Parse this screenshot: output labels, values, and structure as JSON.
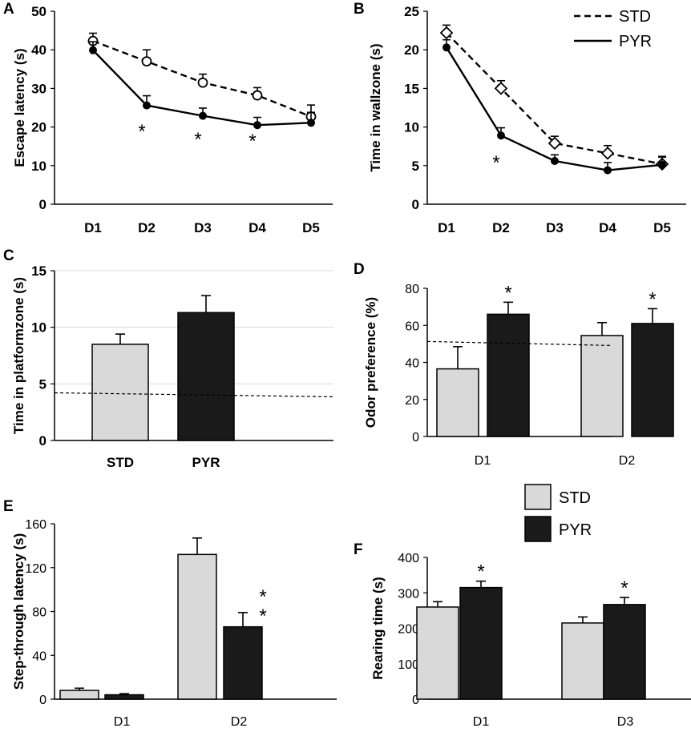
{
  "chart_data": [
    {
      "panel": "A",
      "type": "line",
      "ylabel": "Escape latency (s)",
      "categories": [
        "D1",
        "D2",
        "D3",
        "D4",
        "D5"
      ],
      "ylim": [
        0,
        50
      ],
      "yticks": [
        0,
        10,
        20,
        30,
        40,
        50
      ],
      "series": [
        {
          "name": "STD",
          "style": "dashed",
          "marker": "open-circle",
          "values": [
            42.3,
            37.0,
            31.5,
            28.2,
            22.7
          ],
          "errors": [
            2.0,
            3.0,
            2.2,
            2.0,
            3.0
          ]
        },
        {
          "name": "PYR",
          "style": "solid",
          "marker": "filled-circle",
          "values": [
            39.9,
            25.6,
            22.9,
            20.5,
            21.1
          ],
          "errors": [
            2.2,
            2.5,
            2.0,
            2.0,
            2.7
          ]
        }
      ],
      "annotations": [
        "*",
        "*",
        "*"
      ],
      "annotation_categories": [
        "D2",
        "D3",
        "D4"
      ]
    },
    {
      "panel": "B",
      "type": "line",
      "ylabel": "Time in wallzone (s)",
      "categories": [
        "D1",
        "D2",
        "D3",
        "D4",
        "D5"
      ],
      "ylim": [
        0,
        25
      ],
      "yticks": [
        0,
        5,
        10,
        15,
        20,
        25
      ],
      "legend": [
        "STD",
        "PYR"
      ],
      "series": [
        {
          "name": "STD",
          "style": "dashed",
          "marker": "open-diamond",
          "values": [
            22.2,
            15.0,
            7.9,
            6.6,
            5.2
          ],
          "errors": [
            1.0,
            1.0,
            0.9,
            1.0,
            1.0
          ]
        },
        {
          "name": "PYR",
          "style": "solid",
          "marker": "filled-circle",
          "values": [
            20.3,
            8.9,
            5.6,
            4.4,
            5.1
          ],
          "errors": [
            1.0,
            1.0,
            0.8,
            1.0,
            1.0
          ]
        }
      ],
      "annotations": [
        "*"
      ],
      "annotation_categories": [
        "D2"
      ]
    },
    {
      "panel": "C",
      "type": "bar",
      "ylabel": "Time in platformzone (s)",
      "categories": [
        "STD",
        "PYR"
      ],
      "ylim": [
        0,
        15
      ],
      "yticks": [
        0,
        5,
        10,
        15
      ],
      "values": [
        8.5,
        11.3
      ],
      "errors": [
        0.9,
        1.5
      ],
      "chance_line": 4.0,
      "gridlines": true
    },
    {
      "panel": "D",
      "type": "bar",
      "ylabel": "Odor preference (%)",
      "categories": [
        "D1",
        "D2"
      ],
      "ylim": [
        0,
        80
      ],
      "yticks": [
        0,
        20,
        40,
        60,
        80
      ],
      "series": [
        {
          "name": "STD",
          "values": [
            36.5,
            54.5
          ],
          "errors": [
            12.0,
            7.0
          ]
        },
        {
          "name": "PYR",
          "values": [
            66.0,
            61.0
          ],
          "errors": [
            6.5,
            8.0
          ]
        }
      ],
      "chance_line": 50.0,
      "annotations": [
        "*",
        "*"
      ],
      "annotation_categories": [
        "D1",
        "D2"
      ]
    },
    {
      "panel": "E",
      "type": "bar",
      "ylabel": "Step-through latency (s)",
      "categories": [
        "D1",
        "D2"
      ],
      "ylim": [
        0,
        160
      ],
      "yticks": [
        0,
        40,
        80,
        120,
        160
      ],
      "series": [
        {
          "name": "STD",
          "values": [
            8.0,
            132.0
          ],
          "errors": [
            2.0,
            15.0
          ]
        },
        {
          "name": "PYR",
          "values": [
            4.0,
            66.0
          ],
          "errors": [
            1.0,
            13.0
          ]
        }
      ],
      "annotations": [
        "**"
      ],
      "annotation_categories": [
        "D2"
      ]
    },
    {
      "panel": "F",
      "type": "bar",
      "ylabel": "Rearing time (s)",
      "categories": [
        "D1",
        "D3"
      ],
      "ylim": [
        0,
        400
      ],
      "yticks": [
        0,
        100,
        200,
        300,
        400
      ],
      "series": [
        {
          "name": "STD",
          "values": [
            260,
            215
          ],
          "errors": [
            15,
            17
          ]
        },
        {
          "name": "PYR",
          "values": [
            315,
            267
          ],
          "errors": [
            18,
            20
          ]
        }
      ],
      "annotations": [
        "*",
        "*"
      ],
      "annotation_categories": [
        "D1",
        "D3"
      ]
    }
  ],
  "bar_legend": {
    "items": [
      "STD",
      "PYR"
    ]
  },
  "colors": {
    "std_fill": "#d9d9d9",
    "pyr_fill": "#1a1a1a",
    "stroke": "#000000",
    "grid": "#d9d9d9"
  }
}
